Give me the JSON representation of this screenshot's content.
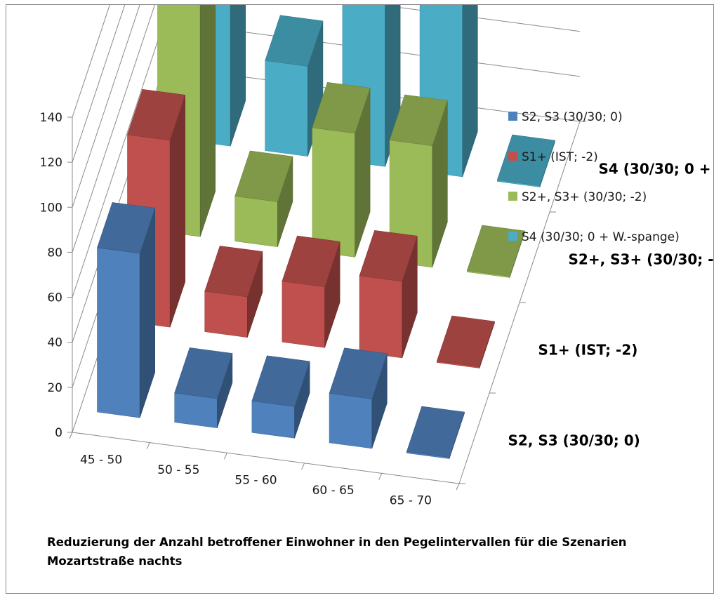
{
  "chart_data": {
    "type": "bar",
    "variant": "3d-column",
    "categories": [
      "45 - 50",
      "50 - 55",
      "55 - 60",
      "60 - 65",
      "65 - 70"
    ],
    "series": [
      {
        "name": "S2, S3 (30/30; 0)",
        "values": [
          73,
          13,
          14,
          22,
          0
        ],
        "color": "#4f81bd"
      },
      {
        "name": "S1+ (IST; -2)",
        "values": [
          83,
          18,
          27,
          34,
          0
        ],
        "color": "#c0504d"
      },
      {
        "name": "S2+, S3+ (30/30; -2)",
        "values": [
          113,
          20,
          55,
          54,
          0
        ],
        "color": "#9bbb59"
      },
      {
        "name": "S4 (30/30; 0 + W.-spange)",
        "values": [
          131,
          40,
          84,
          105,
          0
        ],
        "color": "#4bacc6"
      }
    ],
    "depth_labels": [
      "S2, S3 (30/30; 0)",
      "S1+ (IST; -2)",
      "S2+, S3+ (30/30; -2)",
      "S4 (30/30; 0 + W.-..."
    ],
    "y_ticks": [
      "0",
      "20",
      "40",
      "60",
      "80",
      "100",
      "120",
      "140"
    ],
    "ylim": [
      0,
      140
    ],
    "grid": true,
    "legend_position": "right",
    "title": "",
    "caption": [
      "Reduzierung der Anzahl betroffener  Einwohner in den Pegelintervallen für die Szenarien",
      "Mozartstraße nachts"
    ]
  }
}
